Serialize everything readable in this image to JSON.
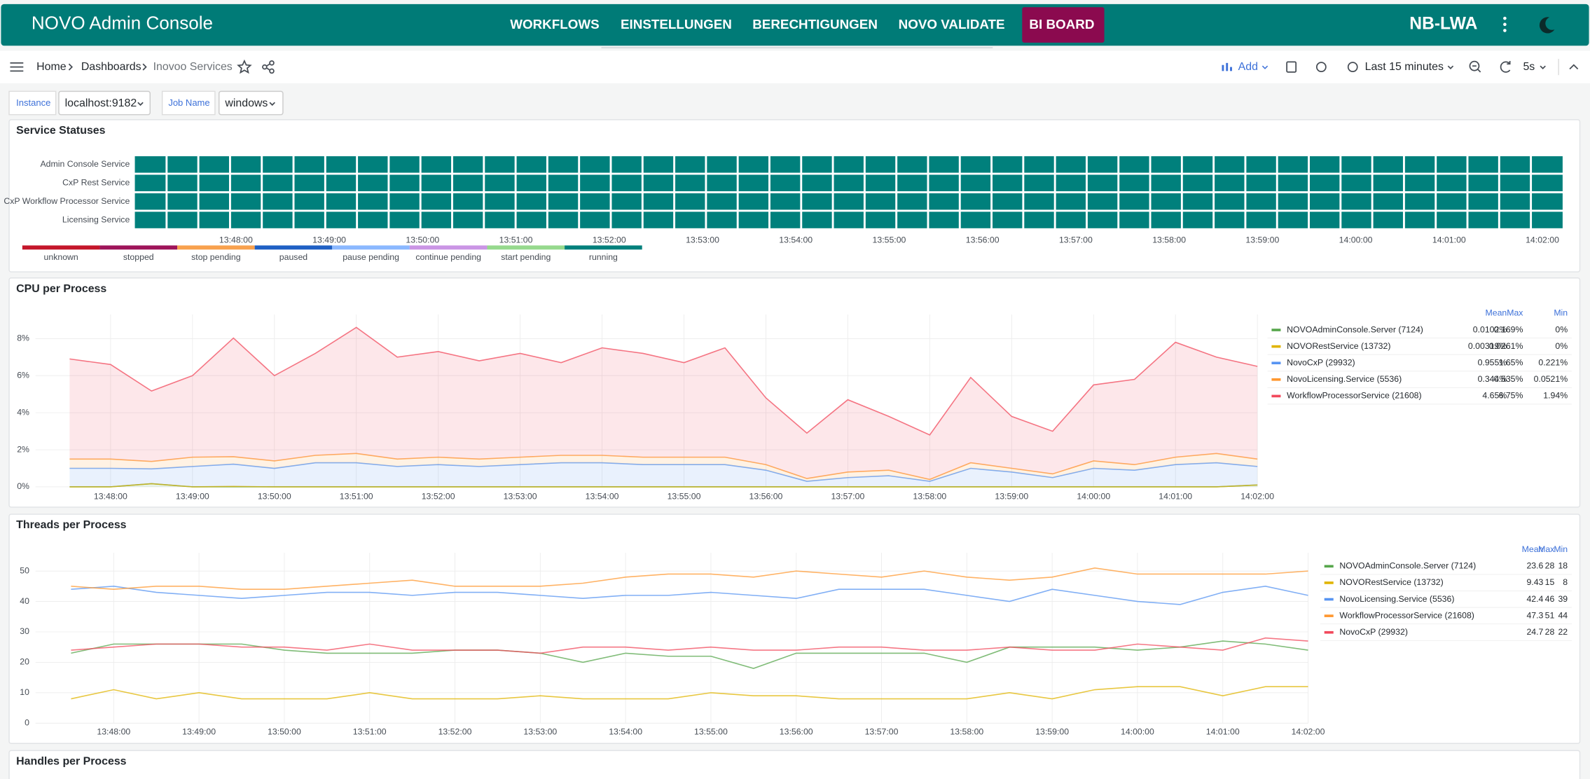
{
  "header": {
    "title": "NOVO Admin Console",
    "nav": [
      "WORKFLOWS",
      "EINSTELLUNGEN",
      "BERECHTIGUNGEN",
      "NOVO VALIDATE",
      "BI BOARD"
    ],
    "user": "NB-LWA"
  },
  "toolbar": {
    "breadcrumbs": [
      "Home",
      "Dashboards",
      "Inovoo Services"
    ],
    "add": "Add",
    "time_range": "Last 15 minutes",
    "refresh": "5s"
  },
  "variables": [
    {
      "label": "Instance",
      "value": "localhost:9182"
    },
    {
      "label": "Job Name",
      "value": "windows"
    }
  ],
  "chart_data": [
    {
      "type": "state-timeline",
      "title": "Service Statuses",
      "rows": [
        {
          "name": "Admin Console Service",
          "value": "running"
        },
        {
          "name": "CxP Rest Service",
          "value": "running"
        },
        {
          "name": "CxP Workflow Processor Service",
          "value": "running"
        },
        {
          "name": "Licensing Service",
          "value": "running"
        }
      ],
      "states": [
        {
          "name": "unknown",
          "color": "#c4162a"
        },
        {
          "name": "stopped",
          "color": "#9e1459"
        },
        {
          "name": "stop pending",
          "color": "#f8a14e"
        },
        {
          "name": "paused",
          "color": "#1f60c4"
        },
        {
          "name": "pause pending",
          "color": "#8ab8ff"
        },
        {
          "name": "continue pending",
          "color": "#ca95e5"
        },
        {
          "name": "start pending",
          "color": "#96d98d"
        },
        {
          "name": "running",
          "color": "#00807c"
        }
      ],
      "xlim": [
        "13:46:55",
        "14:02:13"
      ],
      "xticks": [
        "13:48:00",
        "13:49:00",
        "13:50:00",
        "13:51:00",
        "13:52:00",
        "13:53:00",
        "13:54:00",
        "13:55:00",
        "13:56:00",
        "13:57:00",
        "13:58:00",
        "13:59:00",
        "14:00:00",
        "14:01:00",
        "14:02:00"
      ]
    },
    {
      "type": "line",
      "title": "CPU per Process",
      "stacked": true,
      "fill": true,
      "grid": true,
      "x": [
        "13:47:30",
        "13:48:00",
        "13:48:30",
        "13:49:00",
        "13:49:30",
        "13:50:00",
        "13:50:30",
        "13:51:00",
        "13:51:30",
        "13:52:00",
        "13:52:30",
        "13:53:00",
        "13:53:30",
        "13:54:00",
        "13:54:30",
        "13:55:00",
        "13:55:30",
        "13:56:00",
        "13:56:30",
        "13:57:00",
        "13:57:30",
        "13:58:00",
        "13:58:30",
        "13:59:00",
        "13:59:30",
        "14:00:00",
        "14:00:30",
        "14:01:00",
        "14:01:30",
        "14:02:00"
      ],
      "xlim": [
        "13:47:05",
        "14:02:00"
      ],
      "xticks": [
        "13:48:00",
        "13:49:00",
        "13:50:00",
        "13:51:00",
        "13:52:00",
        "13:53:00",
        "13:54:00",
        "13:55:00",
        "13:56:00",
        "13:57:00",
        "13:58:00",
        "13:59:00",
        "14:00:00",
        "14:01:00",
        "14:02:00"
      ],
      "ylim": [
        0,
        9.3
      ],
      "yticks": [
        {
          "value": 0,
          "label": "0%"
        },
        {
          "value": 2,
          "label": "2%"
        },
        {
          "value": 4,
          "label": "4%"
        },
        {
          "value": 6,
          "label": "6%"
        },
        {
          "value": 8,
          "label": "8%"
        }
      ],
      "legend_columns": [
        "Mean",
        "Max",
        "Min"
      ],
      "series": [
        {
          "name": "NOVOAdminConsole.Server (7124)",
          "color": "#56a64b",
          "stats": [
            "0.0102%",
            "0.169%",
            "0%"
          ],
          "values": [
            0,
            0,
            0.17,
            0,
            0,
            0,
            0,
            0,
            0,
            0,
            0,
            0,
            0,
            0,
            0,
            0,
            0,
            0,
            0,
            0,
            0,
            0,
            0,
            0,
            0,
            0,
            0,
            0,
            0,
            0.1
          ]
        },
        {
          "name": "NOVORestService (13732)",
          "color": "#e0b400",
          "stats": [
            "0.00319%",
            "0.0261%",
            "0%"
          ],
          "values": [
            0,
            0,
            0,
            0,
            0.026,
            0,
            0,
            0,
            0,
            0,
            0,
            0,
            0,
            0,
            0,
            0,
            0,
            0,
            0,
            0,
            0,
            0,
            0,
            0,
            0,
            0,
            0,
            0,
            0,
            0
          ]
        },
        {
          "name": "NovoCxP (29932)",
          "color": "#5794f2",
          "stats": [
            "0.955%",
            "1.65%",
            "0.221%"
          ],
          "values": [
            1.0,
            1.0,
            0.8,
            1.1,
            1.2,
            1.0,
            1.3,
            1.3,
            1.1,
            1.2,
            1.1,
            1.2,
            1.3,
            1.3,
            1.2,
            1.2,
            1.2,
            0.9,
            0.3,
            0.5,
            0.6,
            0.3,
            1.0,
            0.8,
            0.5,
            1.0,
            0.9,
            1.2,
            1.3,
            1.0
          ]
        },
        {
          "name": "NovoLicensing.Service (5536)",
          "color": "#ff9830",
          "stats": [
            "0.344%",
            "0.535%",
            "0.0521%"
          ],
          "values": [
            0.5,
            0.5,
            0.4,
            0.5,
            0.4,
            0.4,
            0.4,
            0.5,
            0.4,
            0.4,
            0.4,
            0.4,
            0.4,
            0.4,
            0.4,
            0.4,
            0.4,
            0.3,
            0.15,
            0.3,
            0.3,
            0.1,
            0.3,
            0.2,
            0.2,
            0.4,
            0.3,
            0.4,
            0.5,
            0.4
          ]
        },
        {
          "name": "WorkflowProcessorService (21608)",
          "color": "#f2495c",
          "stats": [
            "4.65%",
            "6.75%",
            "1.94%"
          ],
          "values": [
            5.4,
            5.1,
            3.8,
            4.4,
            6.4,
            4.6,
            5.5,
            6.8,
            5.5,
            5.7,
            5.3,
            5.6,
            5.0,
            5.8,
            5.6,
            5.1,
            5.9,
            3.6,
            2.45,
            3.9,
            2.9,
            2.4,
            4.6,
            2.8,
            2.3,
            4.1,
            4.6,
            6.2,
            5.2,
            5.0
          ]
        }
      ]
    },
    {
      "type": "line",
      "title": "Threads per Process",
      "stacked": false,
      "fill": false,
      "grid": true,
      "x": [
        "13:47:30",
        "13:48:00",
        "13:48:30",
        "13:49:00",
        "13:49:30",
        "13:50:00",
        "13:50:30",
        "13:51:00",
        "13:51:30",
        "13:52:00",
        "13:52:30",
        "13:53:00",
        "13:53:30",
        "13:54:00",
        "13:54:30",
        "13:55:00",
        "13:55:30",
        "13:56:00",
        "13:56:30",
        "13:57:00",
        "13:57:30",
        "13:58:00",
        "13:58:30",
        "13:59:00",
        "13:59:30",
        "14:00:00",
        "14:00:30",
        "14:01:00",
        "14:01:30",
        "14:02:00"
      ],
      "xlim": [
        "13:47:05",
        "14:02:00"
      ],
      "xticks": [
        "13:48:00",
        "13:49:00",
        "13:50:00",
        "13:51:00",
        "13:52:00",
        "13:53:00",
        "13:54:00",
        "13:55:00",
        "13:56:00",
        "13:57:00",
        "13:58:00",
        "13:59:00",
        "14:00:00",
        "14:01:00",
        "14:02:00"
      ],
      "ylim": [
        0,
        56
      ],
      "yticks": [
        0,
        10,
        20,
        30,
        40,
        50
      ],
      "legend_columns": [
        "Mean",
        "Max",
        "Min"
      ],
      "series": [
        {
          "name": "NOVOAdminConsole.Server (7124)",
          "color": "#56a64b",
          "stats": [
            23.6,
            28,
            18
          ],
          "values": [
            23,
            26,
            26,
            26,
            26,
            24,
            23,
            23,
            23,
            24,
            24,
            23,
            20,
            23,
            22,
            22,
            18,
            23,
            23,
            23,
            23,
            20,
            25,
            25,
            25,
            24,
            25,
            27,
            26,
            24
          ]
        },
        {
          "name": "NOVORestService (13732)",
          "color": "#e0b400",
          "stats": [
            9.43,
            15,
            8
          ],
          "values": [
            8,
            11,
            8,
            10,
            8,
            8,
            8,
            10,
            8,
            8,
            8,
            9,
            8,
            8,
            8,
            10,
            9,
            9,
            8,
            8,
            8,
            8,
            10,
            8,
            11,
            12,
            12,
            9,
            12,
            12
          ]
        },
        {
          "name": "NovoLicensing.Service (5536)",
          "color": "#5794f2",
          "stats": [
            42.4,
            46,
            39
          ],
          "values": [
            44,
            45,
            43,
            42,
            41,
            42,
            43,
            43,
            42,
            43,
            43,
            42,
            41,
            42,
            42,
            43,
            42,
            41,
            44,
            44,
            44,
            42,
            40,
            44,
            42,
            40,
            39,
            43,
            45,
            42
          ]
        },
        {
          "name": "WorkflowProcessorService (21608)",
          "color": "#ff9830",
          "stats": [
            47.3,
            51,
            44
          ],
          "values": [
            45,
            44,
            45,
            45,
            44,
            44,
            45,
            46,
            47,
            45,
            45,
            45,
            46,
            48,
            49,
            49,
            48,
            50,
            49,
            48,
            50,
            48,
            47,
            48,
            51,
            49,
            49,
            49,
            49,
            50
          ]
        },
        {
          "name": "NovoCxP (29932)",
          "color": "#f2495c",
          "stats": [
            24.7,
            28,
            22
          ],
          "values": [
            24,
            25,
            26,
            26,
            25,
            25,
            24,
            26,
            24,
            24,
            24,
            23,
            25,
            25,
            24,
            25,
            24,
            24,
            25,
            25,
            24,
            24,
            25,
            24,
            24,
            26,
            25,
            24,
            28,
            27
          ]
        }
      ]
    }
  ],
  "handles_panel": {
    "title": "Handles per Process"
  }
}
